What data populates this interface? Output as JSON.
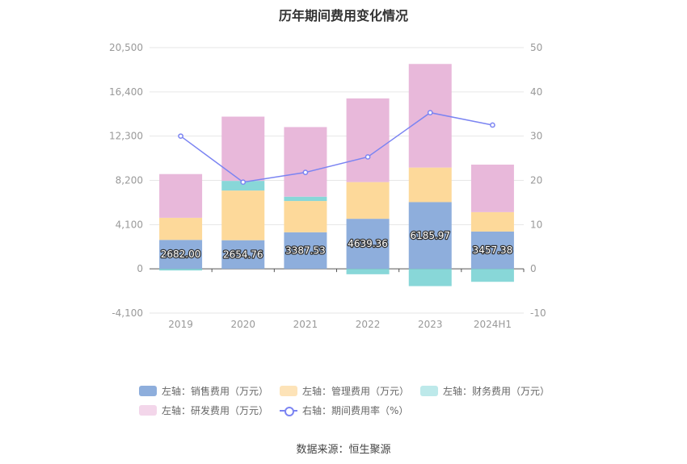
{
  "title": "历年期间费用变化情况",
  "source": "数据来源：恒生聚源",
  "colors": {
    "sales": "#8eaedc",
    "admin": "#fdd99a",
    "finance": "#88d7d8",
    "rd": "#e8b8da",
    "rate": "#7b84f2"
  },
  "legend": {
    "sales": "左轴：销售费用（万元）",
    "admin": "左轴：管理费用（万元）",
    "finance": "左轴：财务费用（万元）",
    "rd": "左轴：研发费用（万元）",
    "rate": "右轴：期间费用率（%）"
  },
  "chart_data": {
    "type": "bar",
    "stacked": true,
    "categories": [
      "2019",
      "2020",
      "2021",
      "2022",
      "2023",
      "2024H1"
    ],
    "series": [
      {
        "name": "左轴：销售费用（万元）",
        "axis": "left",
        "color": "#8eaedc",
        "values": [
          2682.0,
          2654.76,
          3387.53,
          4639.36,
          6185.97,
          3457.38
        ]
      },
      {
        "name": "左轴：管理费用（万元）",
        "axis": "left",
        "color": "#fdd99a",
        "values": [
          2050,
          4600,
          2900,
          3400,
          3200,
          1800
        ]
      },
      {
        "name": "左轴：财务费用（万元）",
        "axis": "left",
        "color": "#88d7d8",
        "values": [
          -150,
          900,
          400,
          -500,
          -1600,
          -1200
        ]
      },
      {
        "name": "左轴：研发费用（万元）",
        "axis": "left",
        "color": "#e8b8da",
        "values": [
          4050,
          5950,
          6450,
          7750,
          9600,
          4400
        ]
      },
      {
        "name": "右轴：期间费用率（%）",
        "axis": "right",
        "type": "line",
        "color": "#7b84f2",
        "values": [
          30.0,
          19.6,
          21.8,
          25.3,
          35.3,
          32.5
        ]
      }
    ],
    "data_labels": [
      "2682.00",
      "2654.76",
      "3387.53",
      "4639.36",
      "6185.97",
      "3457.38"
    ],
    "y_left": {
      "min": -4100,
      "max": 20500,
      "ticks": [
        "-4,100",
        "0",
        "4,100",
        "8,200",
        "12,300",
        "16,400",
        "20,500"
      ]
    },
    "y_right": {
      "min": -10,
      "max": 50,
      "ticks": [
        "-10",
        "0",
        "10",
        "20",
        "30",
        "40",
        "50"
      ]
    },
    "grid": true,
    "legend_position": "bottom"
  }
}
